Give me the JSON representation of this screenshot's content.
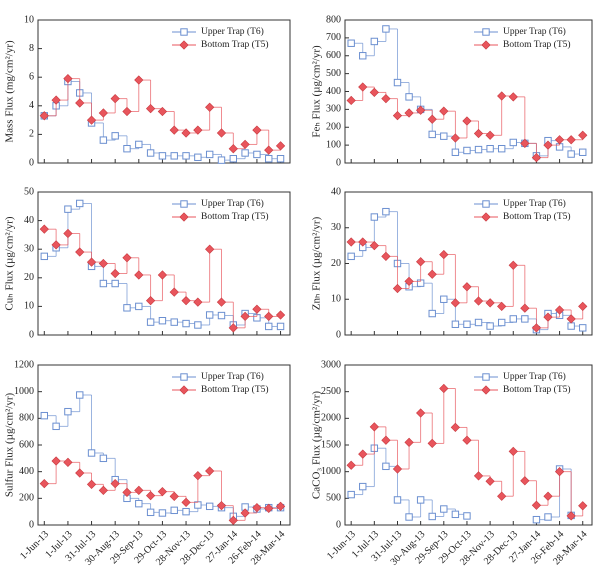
{
  "x_axis": {
    "xlim": [
      -8,
      312
    ],
    "x": [
      0,
      15,
      30,
      45,
      60,
      75,
      90,
      105,
      120,
      135,
      150,
      165,
      180,
      195,
      210,
      225,
      240,
      255,
      270,
      285,
      300
    ],
    "xticks": [
      {
        "value": 0,
        "label": "1-Jun-13"
      },
      {
        "value": 30,
        "label": "1-Jul-13"
      },
      {
        "value": 60,
        "label": "31-Jul-13"
      },
      {
        "value": 90,
        "label": "30-Aug-13"
      },
      {
        "value": 120,
        "label": "29-Sep-13"
      },
      {
        "value": 150,
        "label": "29-Oct-13"
      },
      {
        "value": 180,
        "label": "28-Nov-13"
      },
      {
        "value": 210,
        "label": "28-Dec-13"
      },
      {
        "value": 240,
        "label": "27-Jan-14"
      },
      {
        "value": 270,
        "label": "26-Feb-14"
      },
      {
        "value": 300,
        "label": "28-Mar-14"
      }
    ]
  },
  "chart_data": [
    {
      "type": "step",
      "ylabel": "Mass Flux (mg/cm²/yr)",
      "ylim": [
        0,
        10
      ],
      "yticks": [
        0,
        2,
        4,
        6,
        8,
        10
      ],
      "series": [
        {
          "name": "Upper Trap (T6)",
          "color": "#6b8fd0",
          "values": [
            3.3,
            4.0,
            5.7,
            4.9,
            2.8,
            1.6,
            1.9,
            1.0,
            1.3,
            0.7,
            0.5,
            0.5,
            0.5,
            0.4,
            0.6,
            0.2,
            0.3,
            0.7,
            0.6,
            0.3,
            0.3
          ]
        },
        {
          "name": "Bottom Trap (T5)",
          "color": "#e8555c",
          "values": [
            3.3,
            4.4,
            5.9,
            4.2,
            3.0,
            3.5,
            4.5,
            3.6,
            5.8,
            3.8,
            3.6,
            2.3,
            2.1,
            2.3,
            3.9,
            2.1,
            1.0,
            1.3,
            2.3,
            0.9,
            1.2
          ]
        }
      ]
    },
    {
      "type": "step",
      "ylabel": "Feₕ Flux (µg/cm²/yr)",
      "ylim": [
        0,
        800
      ],
      "yticks": [
        0,
        100,
        200,
        300,
        400,
        500,
        600,
        700,
        800
      ],
      "series": [
        {
          "name": "Upper Trap (T6)",
          "color": "#6b8fd0",
          "values": [
            670,
            600,
            680,
            750,
            450,
            370,
            300,
            160,
            150,
            60,
            70,
            75,
            80,
            80,
            115,
            110,
            40,
            125,
            90,
            50,
            60
          ]
        },
        {
          "name": "Bottom Trap (T5)",
          "color": "#e8555c",
          "values": [
            350,
            425,
            395,
            360,
            265,
            280,
            295,
            245,
            290,
            140,
            235,
            165,
            155,
            375,
            370,
            110,
            30,
            100,
            130,
            130,
            155
          ]
        }
      ]
    },
    {
      "type": "step",
      "ylabel": "Cuₕ Flux (µg/cm²/yr)",
      "ylim": [
        0,
        50
      ],
      "yticks": [
        0,
        10,
        20,
        30,
        40,
        50
      ],
      "series": [
        {
          "name": "Upper Trap (T6)",
          "color": "#6b8fd0",
          "values": [
            27.5,
            30.5,
            44,
            46,
            24,
            18,
            18,
            9.5,
            10,
            4.5,
            5,
            4.5,
            4,
            3.5,
            7,
            6.8,
            3.5,
            7.5,
            6,
            3,
            3
          ]
        },
        {
          "name": "Bottom Trap (T5)",
          "color": "#e8555c",
          "values": [
            37,
            31.5,
            35.5,
            29,
            25.5,
            25,
            21.5,
            27,
            21,
            12,
            21,
            15,
            12,
            11.5,
            30,
            11.5,
            2.5,
            6.5,
            9,
            6.5,
            7
          ]
        }
      ]
    },
    {
      "type": "step",
      "ylabel": "Znₕ Flux (µg/cm²/yr)",
      "ylim": [
        0,
        40
      ],
      "yticks": [
        0,
        10,
        20,
        30,
        40
      ],
      "series": [
        {
          "name": "Upper Trap (T6)",
          "color": "#6b8fd0",
          "values": [
            22,
            24.5,
            33,
            34.5,
            20,
            13.5,
            14.5,
            6,
            10,
            3,
            3,
            3.5,
            2.5,
            3.5,
            4.5,
            4.5,
            1.5,
            6,
            5.5,
            2.5,
            2
          ]
        },
        {
          "name": "Bottom Trap (T5)",
          "color": "#e8555c",
          "values": [
            26,
            26,
            25,
            22,
            13,
            15,
            20.5,
            17,
            22.5,
            9,
            13.5,
            9.5,
            9,
            8,
            19.5,
            7.5,
            2,
            5,
            7,
            4.5,
            8
          ]
        }
      ]
    },
    {
      "type": "step",
      "ylabel": "Sulfur Flux (µg/cm²/yr)",
      "ylim": [
        0,
        1200
      ],
      "yticks": [
        0,
        200,
        400,
        600,
        800,
        1000,
        1200
      ],
      "series": [
        {
          "name": "Upper Trap (T6)",
          "color": "#6b8fd0",
          "values": [
            820,
            740,
            850,
            975,
            540,
            500,
            340,
            200,
            160,
            95,
            90,
            110,
            100,
            150,
            140,
            130,
            65,
            135,
            120,
            130,
            130
          ]
        },
        {
          "name": "Bottom Trap (T5)",
          "color": "#e8555c",
          "values": [
            310,
            480,
            470,
            390,
            305,
            260,
            310,
            245,
            260,
            220,
            250,
            215,
            170,
            370,
            405,
            145,
            35,
            90,
            130,
            125,
            140
          ]
        }
      ]
    },
    {
      "type": "step",
      "ylabel": "CaCO₃ Flux (µg/cm²/yr)",
      "ylim": [
        0,
        3000
      ],
      "yticks": [
        0,
        500,
        1000,
        1500,
        2000,
        2500,
        3000
      ],
      "series": [
        {
          "name": "Upper Trap (T6)",
          "color": "#6b8fd0",
          "values": [
            570,
            720,
            1440,
            1100,
            470,
            150,
            470,
            160,
            300,
            200,
            170,
            null,
            null,
            null,
            null,
            null,
            100,
            150,
            1050,
            180,
            null
          ]
        },
        {
          "name": "Bottom Trap (T5)",
          "color": "#e8555c",
          "values": [
            1120,
            1330,
            1840,
            1590,
            1050,
            1550,
            2100,
            1530,
            2560,
            1830,
            1590,
            920,
            820,
            540,
            1380,
            830,
            370,
            540,
            1000,
            170,
            360
          ]
        }
      ]
    }
  ]
}
